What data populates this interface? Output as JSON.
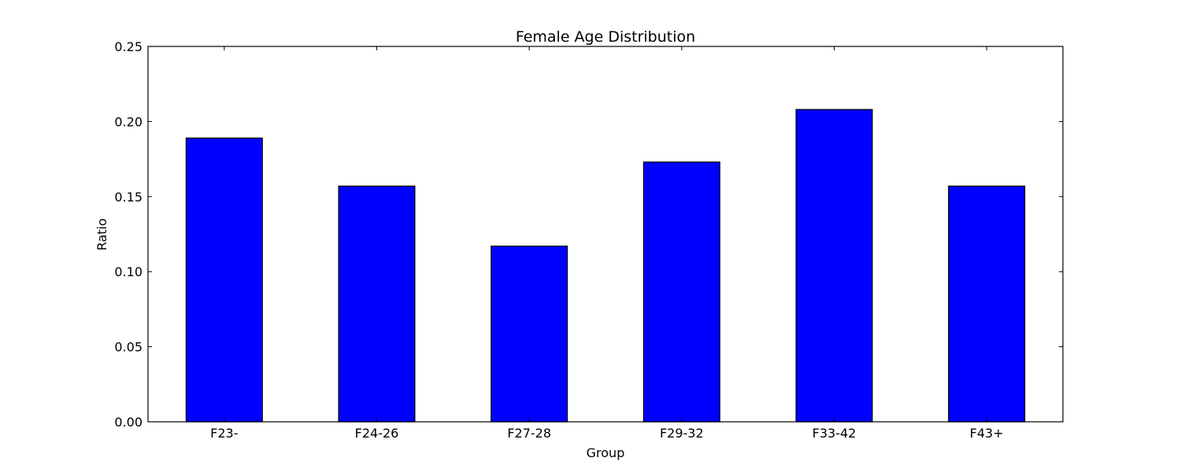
{
  "chart_data": {
    "type": "bar",
    "title": "Female Age Distribution",
    "xlabel": "Group",
    "ylabel": "Ratio",
    "categories": [
      "F23-",
      "F24-26",
      "F27-28",
      "F29-32",
      "F33-42",
      "F43+"
    ],
    "values": [
      0.189,
      0.157,
      0.117,
      0.173,
      0.208,
      0.157
    ],
    "ylim": [
      0,
      0.25
    ],
    "yticks": [
      "0.00",
      "0.05",
      "0.10",
      "0.15",
      "0.20",
      "0.25"
    ],
    "bar_color": "#0000ff",
    "grid": false,
    "legend": "none"
  }
}
